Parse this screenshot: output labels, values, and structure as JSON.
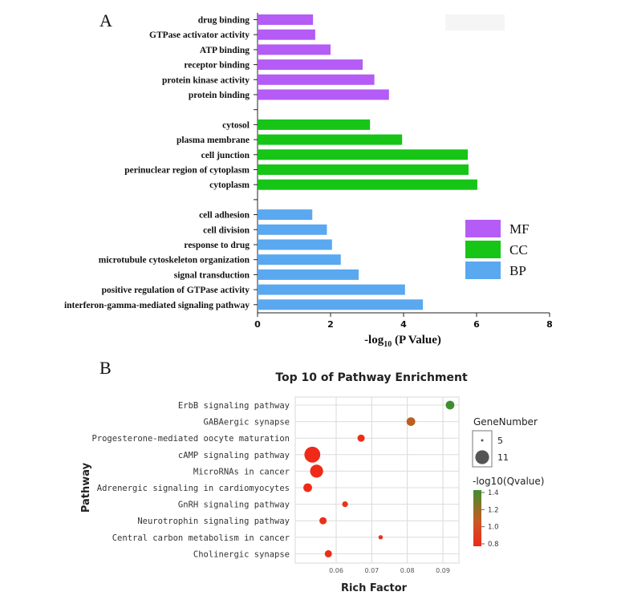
{
  "chart_data": [
    {
      "panel_label": "A",
      "type": "bar",
      "orientation": "horizontal",
      "xlabel_prefix": "-log",
      "xlabel_sub": "10",
      "xlabel_suffix": " (P Value)",
      "xlim": [
        0,
        8
      ],
      "xticks": [
        "0",
        "2",
        "4",
        "6",
        "8"
      ],
      "groups": [
        {
          "name": "MF",
          "color": "#b45cf5",
          "categories": [
            "drug binding",
            "GTPase activator activity",
            "ATP binding",
            "receptor binding",
            "protein kinase activity",
            "protein binding"
          ],
          "values": [
            1.52,
            1.58,
            2.0,
            2.88,
            3.2,
            3.6
          ]
        },
        {
          "name": "CC",
          "color": "#16c516",
          "categories": [
            "cytosol",
            "plasma membrane",
            "cell junction",
            "perinuclear region of cytoplasm",
            "cytoplasm"
          ],
          "values": [
            3.08,
            3.96,
            5.76,
            5.78,
            6.02
          ]
        },
        {
          "name": "BP",
          "color": "#5aa8ef",
          "categories": [
            "cell adhesion",
            "cell division",
            "response to drug",
            "microtubule cytoskeleton organization",
            "signal transduction",
            "positive regulation of GTPase activity",
            "interferon-gamma-mediated signaling pathway"
          ],
          "values": [
            1.5,
            1.9,
            2.04,
            2.28,
            2.77,
            4.04,
            4.53
          ]
        }
      ],
      "legend": [
        "MF",
        "CC",
        "BP"
      ]
    },
    {
      "panel_label": "B",
      "type": "scatter",
      "title": "Top 10 of Pathway Enrichment",
      "xlabel": "Rich Factor",
      "ylabel": "Pathway",
      "xlim": [
        0.0485,
        0.0945
      ],
      "xticks": [
        0.06,
        0.07,
        0.08,
        0.09
      ],
      "xtick_labels": [
        "0.06",
        "0.07",
        "0.08",
        "0.09"
      ],
      "points": [
        {
          "pathway": "ErbB signaling pathway",
          "rich_factor": 0.092,
          "gene_number": 6,
          "neg_log10_q": 1.45
        },
        {
          "pathway": "GABAergic synapse",
          "rich_factor": 0.081,
          "gene_number": 6,
          "neg_log10_q": 1.1
        },
        {
          "pathway": "Progesterone-mediated oocyte maturation",
          "rich_factor": 0.067,
          "gene_number": 5,
          "neg_log10_q": 0.82
        },
        {
          "pathway": "cAMP signaling pathway",
          "rich_factor": 0.0533,
          "gene_number": 11,
          "neg_log10_q": 0.8
        },
        {
          "pathway": "MicroRNAs in cancer",
          "rich_factor": 0.0545,
          "gene_number": 9,
          "neg_log10_q": 0.8
        },
        {
          "pathway": "Adrenergic signaling in cardiomyocytes",
          "rich_factor": 0.052,
          "gene_number": 6,
          "neg_log10_q": 0.8
        },
        {
          "pathway": "GnRH signaling pathway",
          "rich_factor": 0.0625,
          "gene_number": 4,
          "neg_log10_q": 0.85
        },
        {
          "pathway": "Neurotrophin signaling pathway",
          "rich_factor": 0.0563,
          "gene_number": 5,
          "neg_log10_q": 0.82
        },
        {
          "pathway": "Central carbon metabolism in cancer",
          "rich_factor": 0.0725,
          "gene_number": 3,
          "neg_log10_q": 0.85
        },
        {
          "pathway": "Cholinergic synapse",
          "rich_factor": 0.0578,
          "gene_number": 5,
          "neg_log10_q": 0.82
        }
      ],
      "size_legend": {
        "title": "GeneNumber",
        "values": [
          5,
          11
        ]
      },
      "color_legend": {
        "title": "-log10(Qvalue)",
        "ticks": [
          1.4,
          1.2,
          1.0,
          0.8
        ],
        "tick_labels": [
          "1.4",
          "1.2",
          "1.0",
          "0.8"
        ],
        "low_color": "#ef2a18",
        "high_color": "#3e8e2e"
      }
    }
  ]
}
